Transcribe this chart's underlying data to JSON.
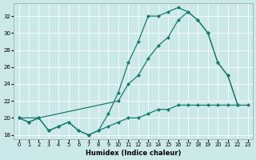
{
  "xlabel": "Humidex (Indice chaleur)",
  "bg_color": "#cce9e9",
  "line_color": "#1a7a6e",
  "xlim": [
    -0.5,
    23.5
  ],
  "ylim": [
    17.5,
    33.5
  ],
  "yticks": [
    18,
    20,
    22,
    24,
    26,
    28,
    30,
    32
  ],
  "xticks": [
    0,
    1,
    2,
    3,
    4,
    5,
    6,
    7,
    8,
    9,
    10,
    11,
    12,
    13,
    14,
    15,
    16,
    17,
    18,
    19,
    20,
    21,
    22,
    23
  ],
  "line1_x": [
    0,
    1,
    2,
    3,
    4,
    5,
    6,
    7,
    8,
    9,
    10,
    11,
    12,
    13,
    14,
    15,
    16,
    17,
    18,
    19,
    20,
    21,
    22,
    23
  ],
  "line1_y": [
    20.0,
    19.5,
    20.0,
    18.5,
    19.0,
    19.5,
    18.5,
    18.0,
    18.5,
    19.0,
    19.5,
    20.0,
    20.0,
    20.5,
    21.0,
    21.0,
    21.5,
    21.5,
    21.5,
    21.5,
    21.5,
    21.5,
    21.5,
    21.5
  ],
  "line2_x": [
    0,
    1,
    2,
    3,
    4,
    5,
    6,
    7,
    8,
    9,
    10,
    11,
    12,
    13,
    14,
    15,
    16,
    17,
    18,
    19,
    20,
    21,
    22
  ],
  "line2_y": [
    20.0,
    19.5,
    20.0,
    18.5,
    19.0,
    19.5,
    18.5,
    18.0,
    18.5,
    20.5,
    23.0,
    26.5,
    29.0,
    32.0,
    32.0,
    32.5,
    33.0,
    32.5,
    31.5,
    30.0,
    26.5,
    25.0,
    21.5
  ],
  "line3_x": [
    0,
    2,
    10,
    11,
    12,
    13,
    14,
    15,
    16,
    17,
    18,
    19,
    20,
    21,
    22
  ],
  "line3_y": [
    20.0,
    20.0,
    22.0,
    24.0,
    25.0,
    27.0,
    28.5,
    29.5,
    31.5,
    32.5,
    31.5,
    30.0,
    26.5,
    25.0,
    21.5
  ]
}
